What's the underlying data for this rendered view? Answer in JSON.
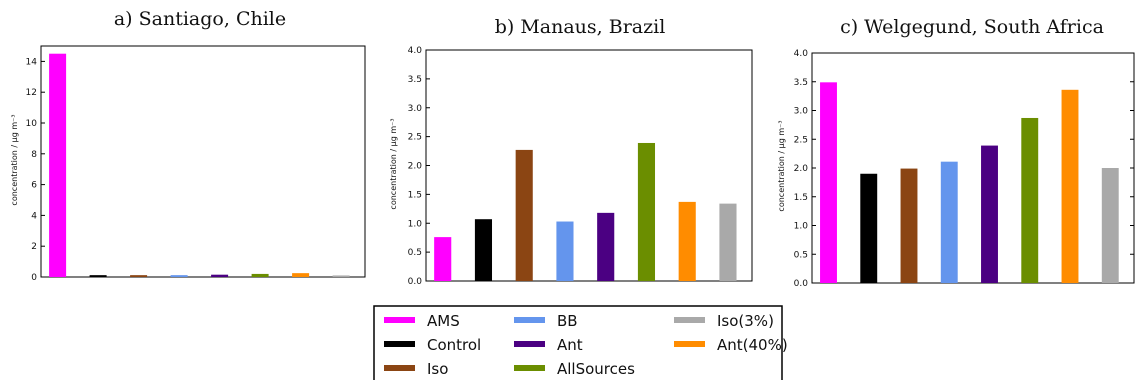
{
  "legend": {
    "items": [
      {
        "label": "AMS",
        "color": "#ff00ff"
      },
      {
        "label": "Control",
        "color": "#000000"
      },
      {
        "label": "Iso",
        "color": "#8b4513"
      },
      {
        "label": "BB",
        "color": "#6495ed"
      },
      {
        "label": "Ant",
        "color": "#4b0082"
      },
      {
        "label": "AllSources",
        "color": "#6b8e00"
      },
      {
        "label": "Iso(3%)",
        "color": "#a9a9a9"
      },
      {
        "label": "Ant(40%)",
        "color": "#ff8c00"
      }
    ]
  },
  "chart_data": [
    {
      "type": "bar",
      "title": "a) Santiago,  Chile",
      "ylabel": "concentration / μg m⁻³",
      "ylim": [
        0,
        15
      ],
      "yticks": [
        "0",
        "2",
        "4",
        "6",
        "8",
        "10",
        "12",
        "14"
      ],
      "ytick_values": [
        0,
        2,
        4,
        6,
        8,
        10,
        12,
        14
      ],
      "categories": [
        "AMS",
        "Control",
        "Iso",
        "BB",
        "Ant",
        "AllSources",
        "Ant(40%)",
        "Iso(3%)"
      ],
      "values": [
        14.5,
        0.12,
        0.12,
        0.12,
        0.15,
        0.2,
        0.25,
        0.1
      ],
      "colors": [
        "#ff00ff",
        "#000000",
        "#8b4513",
        "#6495ed",
        "#4b0082",
        "#6b8e00",
        "#ff8c00",
        "#a9a9a9"
      ]
    },
    {
      "type": "bar",
      "title": "b) Manaus,  Brazil",
      "ylabel": "concentration / μg m⁻³",
      "ylim": [
        0,
        4.0
      ],
      "yticks": [
        "0.0",
        "0.5",
        "1.0",
        "1.5",
        "2.0",
        "2.5",
        "3.0",
        "3.5",
        "4.0"
      ],
      "ytick_values": [
        0,
        0.5,
        1.0,
        1.5,
        2.0,
        2.5,
        3.0,
        3.5,
        4.0
      ],
      "categories": [
        "AMS",
        "Control",
        "Iso",
        "BB",
        "Ant",
        "AllSources",
        "Ant(40%)",
        "Iso(3%)"
      ],
      "values": [
        0.76,
        1.07,
        2.27,
        1.03,
        1.18,
        2.39,
        1.37,
        1.34
      ],
      "colors": [
        "#ff00ff",
        "#000000",
        "#8b4513",
        "#6495ed",
        "#4b0082",
        "#6b8e00",
        "#ff8c00",
        "#a9a9a9"
      ]
    },
    {
      "type": "bar",
      "title": "c) Welgegund,  South Africa",
      "ylabel": "concentration / μg m⁻³",
      "ylim": [
        0,
        4.0
      ],
      "yticks": [
        "0.0",
        "0.5",
        "1.0",
        "1.5",
        "2.0",
        "2.5",
        "3.0",
        "3.5",
        "4.0"
      ],
      "ytick_values": [
        0,
        0.5,
        1.0,
        1.5,
        2.0,
        2.5,
        3.0,
        3.5,
        4.0
      ],
      "categories": [
        "AMS",
        "Control",
        "Iso",
        "BB",
        "Ant",
        "AllSources",
        "Ant(40%)",
        "Iso(3%)"
      ],
      "values": [
        3.49,
        1.9,
        1.99,
        2.11,
        2.39,
        2.87,
        3.36,
        2.0
      ],
      "colors": [
        "#ff00ff",
        "#000000",
        "#8b4513",
        "#6495ed",
        "#4b0082",
        "#6b8e00",
        "#ff8c00",
        "#a9a9a9"
      ]
    }
  ]
}
